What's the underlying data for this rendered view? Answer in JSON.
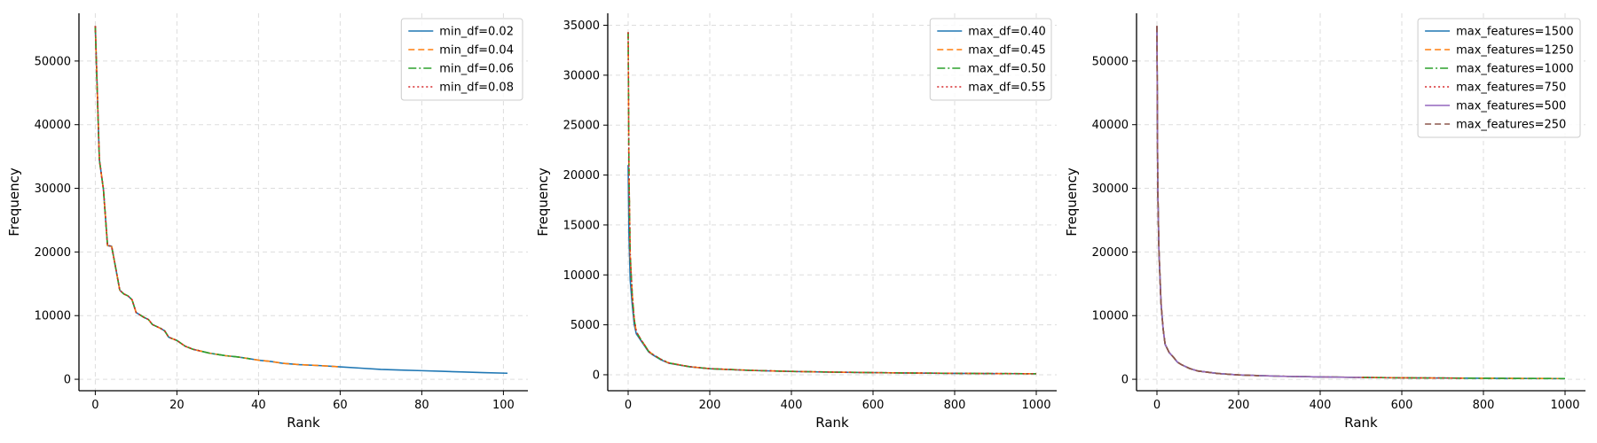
{
  "chart_data": [
    {
      "type": "line",
      "title": "",
      "xlabel": "Rank",
      "ylabel": "Frequency",
      "xlim": [
        -4,
        106
      ],
      "ylim": [
        -1800,
        57500
      ],
      "xticks": [
        0,
        20,
        40,
        60,
        80,
        100
      ],
      "yticks": [
        0,
        10000,
        20000,
        30000,
        40000,
        50000
      ],
      "grid": true,
      "legend_position": "top-right",
      "series": [
        {
          "name": "min_df=0.02",
          "color": "#1f77b4",
          "dash": "solid",
          "x": [
            0,
            1,
            2,
            3,
            4,
            5,
            6,
            7,
            8,
            9,
            10,
            11,
            12,
            13,
            14,
            15,
            16,
            17,
            18,
            20,
            22,
            24,
            26,
            28,
            30,
            32,
            35,
            38,
            40,
            43,
            46,
            50,
            55,
            60,
            65,
            70,
            75,
            80,
            85,
            90,
            95,
            101
          ],
          "y": [
            55500,
            34500,
            29800,
            21000,
            20900,
            17500,
            14000,
            13400,
            13100,
            12500,
            10500,
            10100,
            9700,
            9400,
            8600,
            8300,
            8000,
            7600,
            6600,
            6100,
            5200,
            4700,
            4400,
            4100,
            3900,
            3700,
            3500,
            3200,
            3000,
            2800,
            2500,
            2300,
            2150,
            1950,
            1750,
            1550,
            1450,
            1350,
            1250,
            1150,
            1050,
            950
          ]
        },
        {
          "name": "min_df=0.04",
          "color": "#ff7f0e",
          "dash": "dashed",
          "x": [
            0,
            1,
            2,
            3,
            4,
            5,
            6,
            7,
            8,
            9,
            10,
            11,
            12,
            13,
            14,
            15,
            16,
            17,
            18,
            20,
            22,
            24,
            26,
            28,
            30,
            32,
            35,
            38,
            40,
            43,
            46,
            50,
            55,
            60
          ],
          "y": [
            55500,
            34500,
            29800,
            21000,
            20900,
            17500,
            14000,
            13400,
            13100,
            12500,
            10500,
            10100,
            9700,
            9400,
            8600,
            8300,
            8000,
            7600,
            6600,
            6100,
            5200,
            4700,
            4400,
            4100,
            3900,
            3700,
            3500,
            3200,
            3000,
            2800,
            2500,
            2300,
            2150,
            1950
          ]
        },
        {
          "name": "min_df=0.06",
          "color": "#2ca02c",
          "dash": "dashdot",
          "x": [
            0,
            1,
            2,
            3,
            4,
            5,
            6,
            7,
            8,
            9,
            10,
            11,
            12,
            13,
            14,
            15,
            16,
            17,
            18,
            20,
            22,
            24,
            26,
            28,
            30,
            32,
            35,
            38
          ],
          "y": [
            55500,
            34500,
            29800,
            21000,
            20900,
            17500,
            14000,
            13400,
            13100,
            12500,
            10500,
            10100,
            9700,
            9400,
            8600,
            8300,
            8000,
            7600,
            6600,
            6100,
            5200,
            4700,
            4400,
            4100,
            3900,
            3700,
            3500,
            3200
          ]
        },
        {
          "name": "min_df=0.08",
          "color": "#d62728",
          "dash": "dotted",
          "x": [
            0,
            1,
            2,
            3,
            4,
            5,
            6,
            7,
            8,
            9,
            10,
            11,
            12,
            13,
            14,
            15,
            16,
            17,
            18,
            20,
            22,
            24,
            26
          ],
          "y": [
            55500,
            34500,
            29800,
            21000,
            20900,
            17500,
            14000,
            13400,
            13100,
            12500,
            10500,
            10100,
            9700,
            9400,
            8600,
            8300,
            8000,
            7600,
            6600,
            6100,
            5200,
            4700,
            4400
          ]
        }
      ]
    },
    {
      "type": "line",
      "title": "",
      "xlabel": "Rank",
      "ylabel": "Frequency",
      "xlim": [
        -50,
        1050
      ],
      "ylim": [
        -1600,
        36200
      ],
      "xticks": [
        0,
        200,
        400,
        600,
        800,
        1000
      ],
      "yticks": [
        0,
        5000,
        10000,
        15000,
        20000,
        25000,
        30000,
        35000
      ],
      "grid": true,
      "legend_position": "top-right",
      "series": [
        {
          "name": "max_df=0.40",
          "color": "#1f77b4",
          "dash": "solid",
          "x": [
            0,
            2,
            5,
            10,
            15,
            20,
            30,
            40,
            50,
            60,
            80,
            100,
            150,
            200,
            300,
            400,
            500,
            600,
            700,
            800,
            900,
            1000
          ],
          "y": [
            21000,
            14000,
            9500,
            7000,
            5000,
            4100,
            3500,
            2900,
            2300,
            2000,
            1500,
            1150,
            800,
            600,
            430,
            330,
            260,
            210,
            170,
            140,
            115,
            100
          ]
        },
        {
          "name": "max_df=0.45",
          "color": "#ff7f0e",
          "dash": "dashed",
          "x": [
            0,
            2,
            5,
            10,
            15,
            20,
            30,
            40,
            50,
            60,
            80,
            100,
            150,
            200,
            300,
            400,
            500,
            600,
            700,
            800,
            900,
            1000
          ],
          "y": [
            34300,
            20000,
            12000,
            8000,
            5500,
            4300,
            3600,
            3000,
            2350,
            2050,
            1550,
            1180,
            810,
            610,
            440,
            335,
            265,
            212,
            172,
            142,
            117,
            102
          ]
        },
        {
          "name": "max_df=0.50",
          "color": "#2ca02c",
          "dash": "dashdot",
          "x": [
            0,
            2,
            5,
            10,
            15,
            20,
            30,
            40,
            50,
            60,
            80,
            100,
            150,
            200,
            300,
            400,
            500,
            600,
            700,
            800,
            900,
            1000
          ],
          "y": [
            34300,
            20000,
            12000,
            8000,
            5500,
            4300,
            3600,
            3000,
            2350,
            2050,
            1550,
            1180,
            810,
            610,
            440,
            335,
            265,
            212,
            172,
            142,
            117,
            102
          ]
        },
        {
          "name": "max_df=0.55",
          "color": "#d62728",
          "dash": "dotted",
          "x": [
            0,
            2,
            5,
            10,
            15,
            20,
            30,
            40,
            50,
            60,
            80,
            100,
            150,
            200,
            300,
            400,
            500,
            600,
            700,
            800,
            900,
            1000
          ],
          "y": [
            34300,
            20000,
            12000,
            8000,
            5500,
            4300,
            3600,
            3000,
            2350,
            2050,
            1550,
            1180,
            810,
            610,
            440,
            335,
            265,
            212,
            172,
            142,
            117,
            102
          ]
        }
      ]
    },
    {
      "type": "line",
      "title": "",
      "xlabel": "Rank",
      "ylabel": "Frequency",
      "xlim": [
        -50,
        1050
      ],
      "ylim": [
        -1800,
        57500
      ],
      "xticks": [
        0,
        200,
        400,
        600,
        800,
        1000
      ],
      "yticks": [
        0,
        10000,
        20000,
        30000,
        40000,
        50000
      ],
      "grid": true,
      "legend_position": "top-right",
      "series": [
        {
          "name": "max_features=1500",
          "color": "#1f77b4",
          "dash": "solid",
          "x": [
            0,
            2,
            5,
            10,
            15,
            20,
            30,
            40,
            50,
            60,
            80,
            100,
            150,
            200,
            300,
            400,
            500,
            600,
            700,
            800,
            900,
            1000
          ],
          "y": [
            55500,
            30000,
            20000,
            12000,
            8000,
            5500,
            4200,
            3500,
            2700,
            2300,
            1700,
            1300,
            900,
            680,
            480,
            370,
            290,
            230,
            190,
            160,
            130,
            110
          ]
        },
        {
          "name": "max_features=1250",
          "color": "#ff7f0e",
          "dash": "dashed",
          "x": [
            0,
            2,
            5,
            10,
            15,
            20,
            30,
            40,
            50,
            60,
            80,
            100,
            150,
            200,
            300,
            400,
            500,
            600,
            700,
            800,
            900,
            1000
          ],
          "y": [
            55500,
            30000,
            20000,
            12000,
            8000,
            5500,
            4200,
            3500,
            2700,
            2300,
            1700,
            1300,
            900,
            680,
            480,
            370,
            290,
            230,
            190,
            160,
            130,
            110
          ]
        },
        {
          "name": "max_features=1000",
          "color": "#2ca02c",
          "dash": "dashdot",
          "x": [
            0,
            2,
            5,
            10,
            15,
            20,
            30,
            40,
            50,
            60,
            80,
            100,
            150,
            200,
            300,
            400,
            500,
            600,
            700,
            800,
            900,
            1000
          ],
          "y": [
            55500,
            30000,
            20000,
            12000,
            8000,
            5500,
            4200,
            3500,
            2700,
            2300,
            1700,
            1300,
            900,
            680,
            480,
            370,
            290,
            230,
            190,
            160,
            130,
            110
          ]
        },
        {
          "name": "max_features=750",
          "color": "#d62728",
          "dash": "dotted",
          "x": [
            0,
            2,
            5,
            10,
            15,
            20,
            30,
            40,
            50,
            60,
            80,
            100,
            150,
            200,
            300,
            400,
            500,
            600,
            700,
            750
          ],
          "y": [
            55500,
            30000,
            20000,
            12000,
            8000,
            5500,
            4200,
            3500,
            2700,
            2300,
            1700,
            1300,
            900,
            680,
            480,
            370,
            290,
            230,
            190,
            175
          ]
        },
        {
          "name": "max_features=500",
          "color": "#9467bd",
          "dash": "solid",
          "x": [
            0,
            2,
            5,
            10,
            15,
            20,
            30,
            40,
            50,
            60,
            80,
            100,
            150,
            200,
            300,
            400,
            500
          ],
          "y": [
            55500,
            30000,
            20000,
            12000,
            8000,
            5500,
            4200,
            3500,
            2700,
            2300,
            1700,
            1300,
            900,
            680,
            480,
            370,
            290
          ]
        },
        {
          "name": "max_features=250",
          "color": "#8c564b",
          "dash": "dashed",
          "x": [
            0,
            2,
            5,
            10,
            15,
            20,
            30,
            40,
            50,
            60,
            80,
            100,
            150,
            200,
            250
          ],
          "y": [
            55500,
            30000,
            20000,
            12000,
            8000,
            5500,
            4200,
            3500,
            2700,
            2300,
            1700,
            1300,
            900,
            680,
            560
          ]
        }
      ]
    }
  ]
}
